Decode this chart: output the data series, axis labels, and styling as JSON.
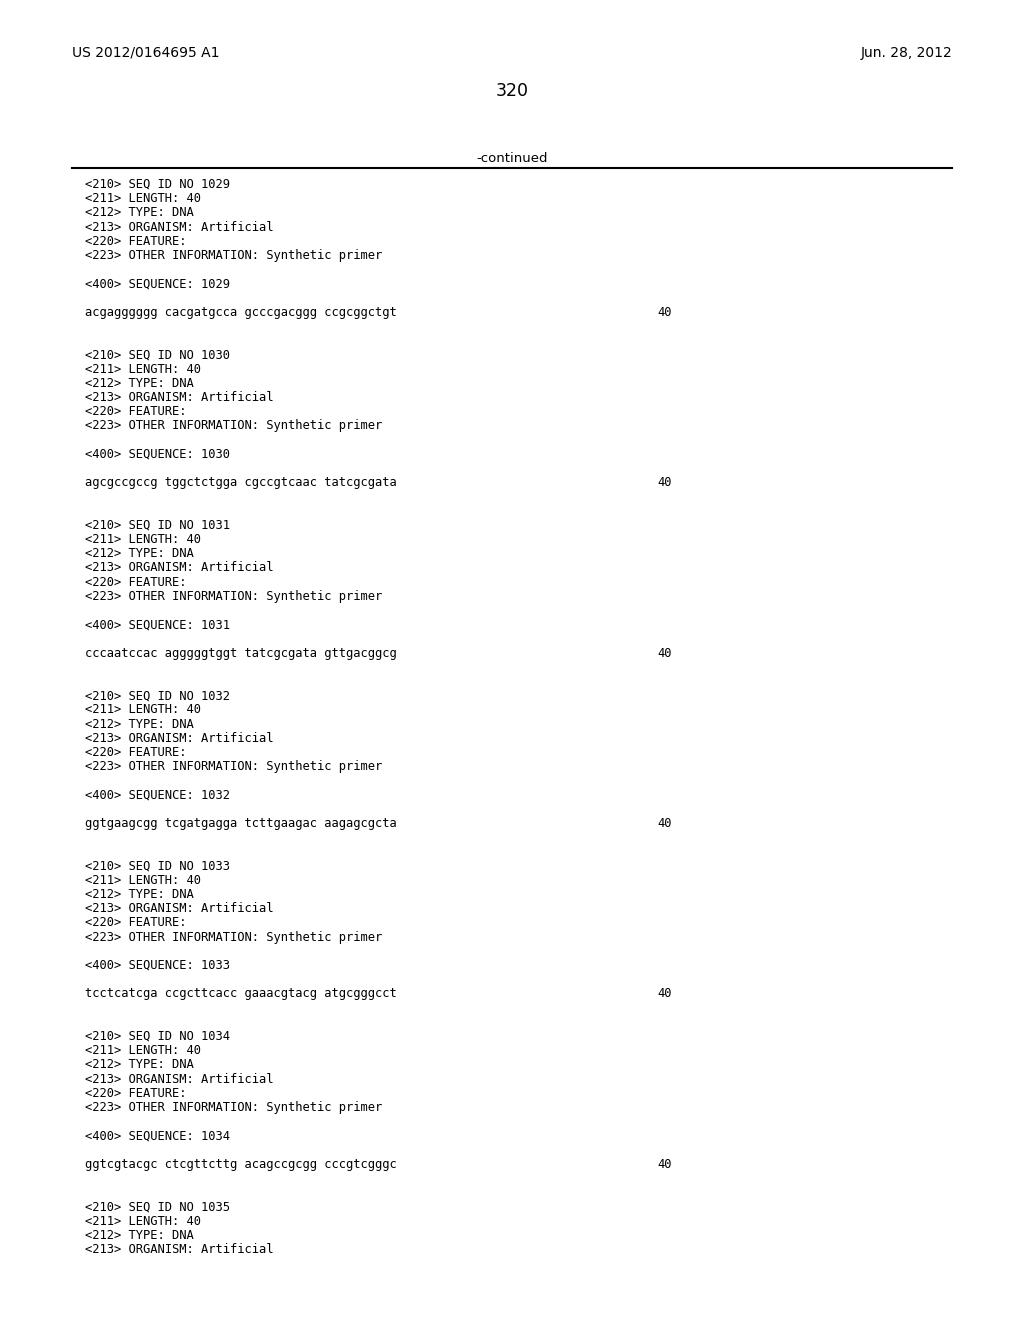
{
  "background_color": "#ffffff",
  "top_left_text": "US 2012/0164695 A1",
  "top_right_text": "Jun. 28, 2012",
  "page_number": "320",
  "continued_text": "-continued",
  "seq_blocks": [
    {
      "lines": [
        "<210> SEQ ID NO 1029",
        "<211> LENGTH: 40",
        "<212> TYPE: DNA",
        "<213> ORGANISM: Artificial",
        "<220> FEATURE:",
        "<223> OTHER INFORMATION: Synthetic primer"
      ],
      "seq_label": "<400> SEQUENCE: 1029",
      "sequence": "acgagggggg cacgatgcca gcccgacggg ccgcggctgt",
      "seq_num": "40"
    },
    {
      "lines": [
        "<210> SEQ ID NO 1030",
        "<211> LENGTH: 40",
        "<212> TYPE: DNA",
        "<213> ORGANISM: Artificial",
        "<220> FEATURE:",
        "<223> OTHER INFORMATION: Synthetic primer"
      ],
      "seq_label": "<400> SEQUENCE: 1030",
      "sequence": "agcgccgccg tggctctgga cgccgtcaac tatcgcgata",
      "seq_num": "40"
    },
    {
      "lines": [
        "<210> SEQ ID NO 1031",
        "<211> LENGTH: 40",
        "<212> TYPE: DNA",
        "<213> ORGANISM: Artificial",
        "<220> FEATURE:",
        "<223> OTHER INFORMATION: Synthetic primer"
      ],
      "seq_label": "<400> SEQUENCE: 1031",
      "sequence": "cccaatccac agggggtggt tatcgcgata gttgacggcg",
      "seq_num": "40"
    },
    {
      "lines": [
        "<210> SEQ ID NO 1032",
        "<211> LENGTH: 40",
        "<212> TYPE: DNA",
        "<213> ORGANISM: Artificial",
        "<220> FEATURE:",
        "<223> OTHER INFORMATION: Synthetic primer"
      ],
      "seq_label": "<400> SEQUENCE: 1032",
      "sequence": "ggtgaagcgg tcgatgagga tcttgaagac aagagcgcta",
      "seq_num": "40"
    },
    {
      "lines": [
        "<210> SEQ ID NO 1033",
        "<211> LENGTH: 40",
        "<212> TYPE: DNA",
        "<213> ORGANISM: Artificial",
        "<220> FEATURE:",
        "<223> OTHER INFORMATION: Synthetic primer"
      ],
      "seq_label": "<400> SEQUENCE: 1033",
      "sequence": "tcctcatcga ccgcttcacc gaaacgtacg atgcgggcct",
      "seq_num": "40"
    },
    {
      "lines": [
        "<210> SEQ ID NO 1034",
        "<211> LENGTH: 40",
        "<212> TYPE: DNA",
        "<213> ORGANISM: Artificial",
        "<220> FEATURE:",
        "<223> OTHER INFORMATION: Synthetic primer"
      ],
      "seq_label": "<400> SEQUENCE: 1034",
      "sequence": "ggtcgtacgc ctcgttcttg acagccgcgg cccgtcgggc",
      "seq_num": "40"
    }
  ],
  "last_block_lines": [
    "<210> SEQ ID NO 1035",
    "<211> LENGTH: 40",
    "<212> TYPE: DNA",
    "<213> ORGANISM: Artificial"
  ]
}
